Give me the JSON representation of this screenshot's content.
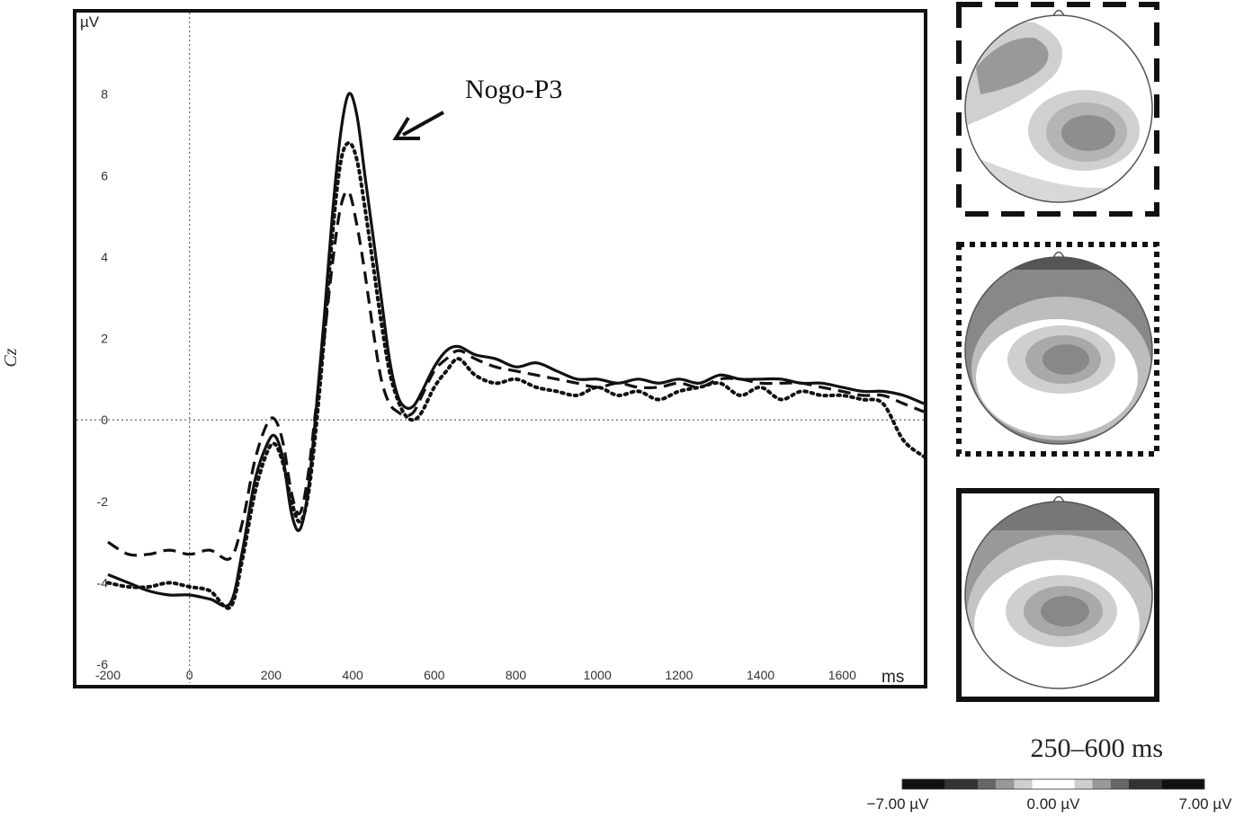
{
  "channel_label": "Cz",
  "chart_data": {
    "type": "line",
    "ylabel": "µV",
    "xunit_label": "ms",
    "xlim": [
      -200,
      1800
    ],
    "ylim": [
      -6,
      10
    ],
    "xticks": [
      -200,
      0,
      200,
      400,
      600,
      800,
      1000,
      1200,
      1400,
      1600
    ],
    "yticks": [
      -6,
      -4,
      -2,
      0,
      2,
      4,
      6,
      8
    ],
    "xtick_labels": [
      "-200",
      "0",
      "200",
      "400",
      "600",
      "800",
      "1000",
      "1200",
      "1400",
      "1600"
    ],
    "ytick_labels": [
      "-6",
      "-4",
      "-2",
      "0",
      "2",
      "4",
      "6",
      "8"
    ],
    "reference_lines": {
      "x": 0,
      "y": 0
    },
    "annotation": {
      "text": "Nogo-P3",
      "target_x": 495,
      "target_y": 7.0
    },
    "series": [
      {
        "style": "solid",
        "x": [
          -200,
          -150,
          -100,
          -50,
          0,
          50,
          100,
          130,
          160,
          190,
          210,
          230,
          250,
          270,
          290,
          310,
          330,
          350,
          370,
          390,
          410,
          430,
          450,
          470,
          490,
          510,
          530,
          550,
          570,
          600,
          630,
          660,
          700,
          750,
          800,
          850,
          900,
          950,
          1000,
          1050,
          1100,
          1150,
          1200,
          1250,
          1300,
          1350,
          1400,
          1450,
          1500,
          1550,
          1600,
          1650,
          1700,
          1750,
          1800
        ],
        "y": [
          -3.8,
          -4.0,
          -4.2,
          -4.3,
          -4.3,
          -4.4,
          -4.5,
          -3.2,
          -1.5,
          -0.6,
          -0.4,
          -1.0,
          -2.3,
          -2.7,
          -1.8,
          0.2,
          2.5,
          5.0,
          7.0,
          8.0,
          7.5,
          6.0,
          4.5,
          3.0,
          1.5,
          0.6,
          0.3,
          0.35,
          0.7,
          1.3,
          1.7,
          1.8,
          1.6,
          1.5,
          1.3,
          1.4,
          1.2,
          1.0,
          1.0,
          0.9,
          1.0,
          0.9,
          1.0,
          0.9,
          1.1,
          1.0,
          1.0,
          1.0,
          0.9,
          0.9,
          0.8,
          0.7,
          0.7,
          0.6,
          0.4
        ]
      },
      {
        "style": "dashed",
        "x": [
          -200,
          -150,
          -100,
          -50,
          0,
          50,
          100,
          130,
          160,
          190,
          210,
          230,
          250,
          270,
          290,
          310,
          330,
          350,
          370,
          390,
          410,
          430,
          450,
          470,
          490,
          510,
          530,
          550,
          570,
          600,
          630,
          660,
          700,
          750,
          800,
          850,
          900,
          950,
          1000,
          1050,
          1100,
          1150,
          1200,
          1250,
          1300,
          1350,
          1400,
          1450,
          1500,
          1550,
          1600,
          1650,
          1700,
          1750,
          1800
        ],
        "y": [
          -3.0,
          -3.3,
          -3.3,
          -3.2,
          -3.3,
          -3.2,
          -3.4,
          -2.5,
          -1.0,
          -0.1,
          0.0,
          -0.6,
          -1.8,
          -2.3,
          -1.4,
          0.3,
          2.0,
          3.8,
          5.2,
          5.6,
          4.8,
          3.6,
          2.2,
          1.0,
          0.4,
          0.2,
          0.1,
          0.2,
          0.6,
          1.2,
          1.5,
          1.7,
          1.5,
          1.3,
          1.2,
          1.1,
          1.0,
          0.9,
          0.8,
          0.9,
          0.8,
          0.8,
          0.9,
          0.8,
          1.0,
          1.0,
          0.9,
          0.9,
          0.9,
          0.8,
          0.7,
          0.6,
          0.6,
          0.4,
          0.2
        ]
      },
      {
        "style": "dotted",
        "x": [
          -200,
          -150,
          -100,
          -50,
          0,
          50,
          100,
          130,
          160,
          190,
          210,
          230,
          250,
          270,
          290,
          310,
          330,
          350,
          370,
          390,
          410,
          430,
          450,
          470,
          490,
          510,
          530,
          550,
          570,
          600,
          630,
          660,
          700,
          750,
          800,
          850,
          900,
          950,
          1000,
          1050,
          1100,
          1150,
          1200,
          1250,
          1300,
          1350,
          1400,
          1450,
          1500,
          1550,
          1600,
          1650,
          1700,
          1750,
          1800
        ],
        "y": [
          -4.0,
          -4.1,
          -4.1,
          -4.0,
          -4.1,
          -4.2,
          -4.6,
          -3.4,
          -1.8,
          -0.8,
          -0.6,
          -1.1,
          -2.0,
          -2.5,
          -1.9,
          -0.2,
          2.0,
          4.5,
          6.3,
          6.8,
          6.4,
          5.2,
          3.8,
          2.4,
          1.2,
          0.5,
          0.1,
          0.0,
          0.2,
          0.8,
          1.2,
          1.5,
          1.1,
          0.9,
          1.0,
          0.8,
          0.7,
          0.6,
          0.8,
          0.6,
          0.7,
          0.5,
          0.7,
          0.8,
          0.9,
          0.6,
          0.8,
          0.5,
          0.7,
          0.6,
          0.6,
          0.5,
          0.4,
          -0.5,
          -0.9
        ]
      }
    ]
  },
  "topomaps": {
    "time_window": "250–600 ms",
    "colorbar": {
      "min_label": "−7.00 µV",
      "mid_label": "0.00 µV",
      "max_label": "7.00 µV",
      "min": -7.0,
      "max": 7.0
    },
    "maps": [
      {
        "frame_style": "dashed",
        "series_style": "dashed"
      },
      {
        "frame_style": "dotted",
        "series_style": "dotted"
      },
      {
        "frame_style": "solid",
        "series_style": "solid"
      }
    ]
  }
}
